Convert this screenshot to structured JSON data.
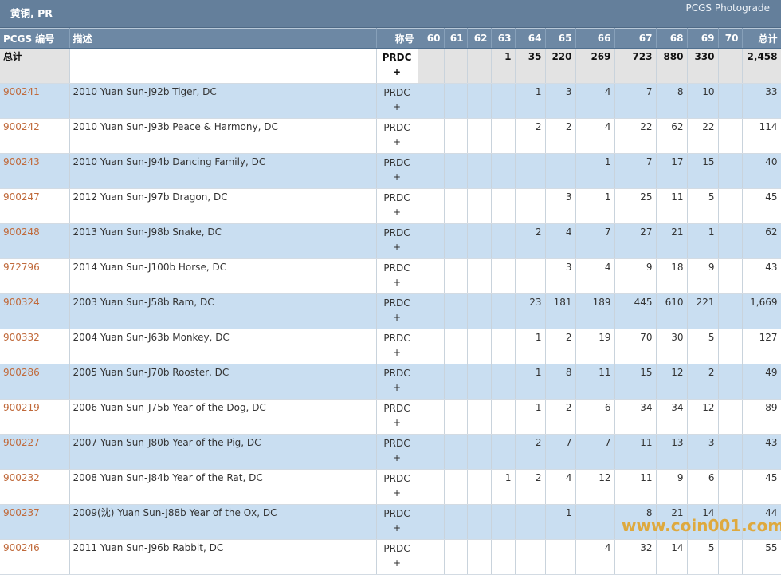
{
  "banner": {
    "title": "黄铜, PR",
    "subtitle": "PCGS Photograde"
  },
  "headers": {
    "pcgs_no": "PCGS 编号",
    "description": "描述",
    "designation": "称号",
    "grades": [
      "60",
      "61",
      "62",
      "63",
      "64",
      "65",
      "66",
      "67",
      "68",
      "69",
      "70"
    ],
    "total": "总计"
  },
  "totals": {
    "label": "总计",
    "designation": "PRDC",
    "plus": "+",
    "grades": [
      "",
      "",
      "",
      "1",
      "35",
      "220",
      "269",
      "723",
      "880",
      "330",
      ""
    ],
    "total": "2,458"
  },
  "rows": [
    {
      "id": "900241",
      "desc": "2010 Yuan Sun-J92b Tiger, DC",
      "designation": "PRDC",
      "plus": "+",
      "grades": [
        "",
        "",
        "",
        "",
        "1",
        "3",
        "4",
        "7",
        "8",
        "10",
        ""
      ],
      "total": "33"
    },
    {
      "id": "900242",
      "desc": "2010 Yuan Sun-J93b Peace & Harmony, DC",
      "designation": "PRDC",
      "plus": "+",
      "grades": [
        "",
        "",
        "",
        "",
        "2",
        "2",
        "4",
        "22",
        "62",
        "22",
        ""
      ],
      "total": "114"
    },
    {
      "id": "900243",
      "desc": "2010 Yuan Sun-J94b Dancing Family, DC",
      "designation": "PRDC",
      "plus": "+",
      "grades": [
        "",
        "",
        "",
        "",
        "",
        "",
        "1",
        "7",
        "17",
        "15",
        ""
      ],
      "total": "40"
    },
    {
      "id": "900247",
      "desc": "2012 Yuan Sun-J97b Dragon, DC",
      "designation": "PRDC",
      "plus": "+",
      "grades": [
        "",
        "",
        "",
        "",
        "",
        "3",
        "1",
        "25",
        "11",
        "5",
        ""
      ],
      "total": "45"
    },
    {
      "id": "900248",
      "desc": "2013 Yuan Sun-J98b Snake, DC",
      "designation": "PRDC",
      "plus": "+",
      "grades": [
        "",
        "",
        "",
        "",
        "2",
        "4",
        "7",
        "27",
        "21",
        "1",
        ""
      ],
      "total": "62"
    },
    {
      "id": "972796",
      "desc": "2014 Yuan Sun-J100b Horse, DC",
      "designation": "PRDC",
      "plus": "+",
      "grades": [
        "",
        "",
        "",
        "",
        "",
        "3",
        "4",
        "9",
        "18",
        "9",
        ""
      ],
      "total": "43"
    },
    {
      "id": "900324",
      "desc": "2003 Yuan Sun-J58b Ram, DC",
      "designation": "PRDC",
      "plus": "+",
      "grades": [
        "",
        "",
        "",
        "",
        "23",
        "181",
        "189",
        "445",
        "610",
        "221",
        ""
      ],
      "total": "1,669"
    },
    {
      "id": "900332",
      "desc": "2004 Yuan Sun-J63b Monkey, DC",
      "designation": "PRDC",
      "plus": "+",
      "grades": [
        "",
        "",
        "",
        "",
        "1",
        "2",
        "19",
        "70",
        "30",
        "5",
        ""
      ],
      "total": "127"
    },
    {
      "id": "900286",
      "desc": "2005 Yuan Sun-J70b Rooster, DC",
      "designation": "PRDC",
      "plus": "+",
      "grades": [
        "",
        "",
        "",
        "",
        "1",
        "8",
        "11",
        "15",
        "12",
        "2",
        ""
      ],
      "total": "49"
    },
    {
      "id": "900219",
      "desc": "2006 Yuan Sun-J75b Year of the Dog, DC",
      "designation": "PRDC",
      "plus": "+",
      "grades": [
        "",
        "",
        "",
        "",
        "1",
        "2",
        "6",
        "34",
        "34",
        "12",
        ""
      ],
      "total": "89"
    },
    {
      "id": "900227",
      "desc": "2007 Yuan Sun-J80b Year of the Pig, DC",
      "designation": "PRDC",
      "plus": "+",
      "grades": [
        "",
        "",
        "",
        "",
        "2",
        "7",
        "7",
        "11",
        "13",
        "3",
        ""
      ],
      "total": "43"
    },
    {
      "id": "900232",
      "desc": "2008 Yuan Sun-J84b Year of the Rat, DC",
      "designation": "PRDC",
      "plus": "+",
      "grades": [
        "",
        "",
        "",
        "1",
        "2",
        "4",
        "12",
        "11",
        "9",
        "6",
        ""
      ],
      "total": "45"
    },
    {
      "id": "900237",
      "desc": "2009(沈) Yuan Sun-J88b Year of the Ox, DC",
      "designation": "PRDC",
      "plus": "+",
      "grades": [
        "",
        "",
        "",
        "",
        "",
        "1",
        "",
        "8",
        "21",
        "14",
        ""
      ],
      "total": "44"
    },
    {
      "id": "900246",
      "desc": "2011 Yuan Sun-J96b Rabbit, DC",
      "designation": "PRDC",
      "plus": "+",
      "grades": [
        "",
        "",
        "",
        "",
        "",
        "",
        "4",
        "32",
        "14",
        "5",
        ""
      ],
      "total": "55"
    }
  ],
  "watermark": "www.coin001.com"
}
